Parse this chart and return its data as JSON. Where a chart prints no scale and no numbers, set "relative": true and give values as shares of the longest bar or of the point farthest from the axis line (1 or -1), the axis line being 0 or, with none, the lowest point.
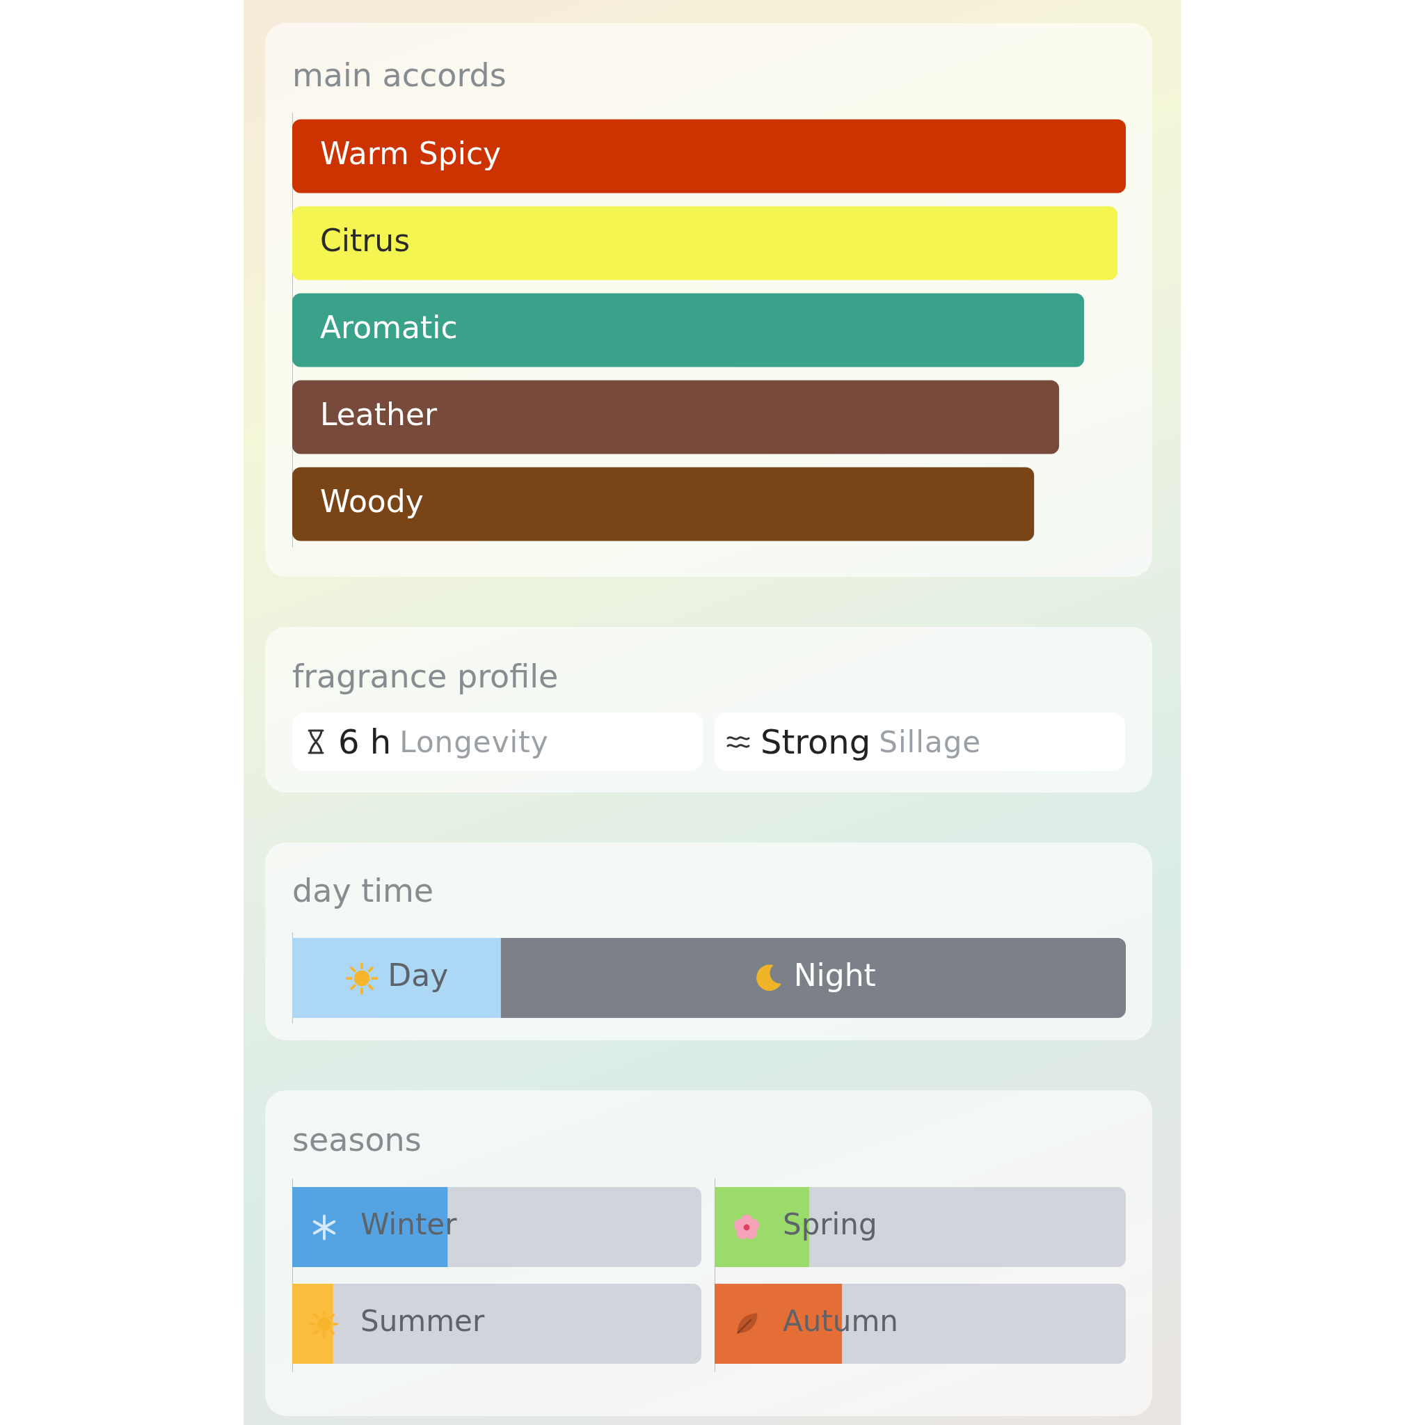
{
  "chart_data": [
    {
      "type": "bar",
      "title": "main accords",
      "orientation": "horizontal",
      "relative": true,
      "categories": [
        "Warm Spicy",
        "Citrus",
        "Aromatic",
        "Leather",
        "Woody"
      ],
      "colors": [
        "#cc3300",
        "#f5f552",
        "#3aa18a",
        "#774a3c",
        "#7a4516"
      ],
      "values": [
        1,
        0.99,
        0.95,
        0.92,
        0.89
      ]
    },
    {
      "type": "other",
      "title": "fragrance profile",
      "annotations": [
        "6 h",
        "Longevity",
        "Strong",
        "Sillage"
      ]
    },
    {
      "type": "bar",
      "title": "day time",
      "orientation": "horizontal",
      "stacked": true,
      "relative": true,
      "categories": [
        null
      ],
      "series": [
        {
          "name": "Day",
          "color": "#acd8f5",
          "values": [
            0.25
          ]
        },
        {
          "name": "Night",
          "color": "#7c8189",
          "values": [
            0.75
          ]
        }
      ]
    },
    {
      "type": "bar",
      "title": "seasons",
      "orientation": "horizontal",
      "stacked": true,
      "relative": true,
      "categories": [
        "Winter",
        "Summer"
      ],
      "series": [
        {
          "colors": [
            "#55a3e3",
            "#fbbd3e"
          ],
          "values": [
            0.38,
            0.1
          ]
        },
        {
          "color": "#d1d4da",
          "values": [
            0.62,
            0.9
          ]
        }
      ]
    },
    {
      "type": "bar",
      "orientation": "horizontal",
      "stacked": true,
      "relative": true,
      "categories": [
        "Spring",
        "Autumn"
      ],
      "series": [
        {
          "colors": [
            "#9bdb6b",
            "#e46e35"
          ],
          "values": [
            0.23,
            0.31
          ]
        },
        {
          "color": "#d1d4da",
          "values": [
            0.77,
            0.69
          ]
        }
      ]
    }
  ]
}
